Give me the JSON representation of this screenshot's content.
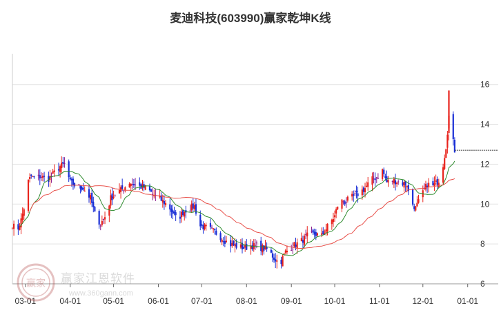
{
  "title": "麦迪科技(603990)赢家乾坤K线",
  "watermark": {
    "name": "赢家江恩软件",
    "url": "www.360gann.com",
    "logo": "赢家"
  },
  "colors": {
    "up": "#e8231c",
    "down": "#1a2fd6",
    "neutral": "#8b1a8b",
    "ma_short": "#2e8b2e",
    "ma_long": "#e8504a",
    "grid": "#e3e3e3"
  },
  "chart_data": {
    "type": "candlestick",
    "title": "麦迪科技(603990)赢家乾坤K线",
    "y_ticks": [
      6,
      8,
      10,
      12,
      14,
      16
    ],
    "x_ticks": [
      "03-01",
      "04-01",
      "05-01",
      "06-01",
      "07-01",
      "08-01",
      "09-01",
      "10-01",
      "11-01",
      "12-01",
      "01-01"
    ],
    "ylim": [
      6,
      17.2
    ],
    "last_price": 12.7,
    "grid": true,
    "series": [
      {
        "name": "",
        "kind": "moving-average-short"
      },
      {
        "name": "",
        "kind": "moving-average-long"
      }
    ],
    "close_path": [
      [
        "02-20",
        9.0
      ],
      [
        "02-23",
        8.6
      ],
      [
        "02-26",
        9.2
      ],
      [
        "02-28",
        9.8
      ],
      [
        "03-02",
        11.0
      ],
      [
        "03-05",
        11.4
      ],
      [
        "03-07",
        11.3
      ],
      [
        "03-12",
        11.4
      ],
      [
        "03-16",
        11.2
      ],
      [
        "03-20",
        11.5
      ],
      [
        "03-25",
        11.9
      ],
      [
        "03-28",
        12.0
      ],
      [
        "04-01",
        11.1
      ],
      [
        "04-05",
        10.9
      ],
      [
        "04-10",
        10.8
      ],
      [
        "04-15",
        10.3
      ],
      [
        "04-18",
        9.5
      ],
      [
        "04-22",
        9.0
      ],
      [
        "04-26",
        9.5
      ],
      [
        "04-29",
        10.3
      ],
      [
        "05-04",
        10.6
      ],
      [
        "05-08",
        10.8
      ],
      [
        "05-12",
        11.1
      ],
      [
        "05-18",
        10.9
      ],
      [
        "05-24",
        10.8
      ],
      [
        "05-28",
        10.5
      ],
      [
        "06-03",
        10.2
      ],
      [
        "06-08",
        9.9
      ],
      [
        "06-14",
        9.2
      ],
      [
        "06-18",
        9.6
      ],
      [
        "06-22",
        9.8
      ],
      [
        "06-26",
        9.9
      ],
      [
        "06-30",
        8.9
      ],
      [
        "07-05",
        8.8
      ],
      [
        "07-10",
        8.6
      ],
      [
        "07-15",
        8.3
      ],
      [
        "07-20",
        8.0
      ],
      [
        "07-25",
        7.9
      ],
      [
        "07-30",
        7.8
      ],
      [
        "08-04",
        7.9
      ],
      [
        "08-08",
        7.9
      ],
      [
        "08-12",
        7.8
      ],
      [
        "08-16",
        7.7
      ],
      [
        "08-20",
        7.3
      ],
      [
        "08-24",
        7.0
      ],
      [
        "08-28",
        7.6
      ],
      [
        "09-02",
        7.9
      ],
      [
        "09-07",
        8.1
      ],
      [
        "09-12",
        8.4
      ],
      [
        "09-17",
        8.5
      ],
      [
        "09-22",
        8.4
      ],
      [
        "09-27",
        9.0
      ],
      [
        "10-01",
        9.4
      ],
      [
        "10-04",
        10.2
      ],
      [
        "10-08",
        10.1
      ],
      [
        "10-12",
        10.3
      ],
      [
        "10-17",
        10.5
      ],
      [
        "10-22",
        10.8
      ],
      [
        "10-26",
        11.2
      ],
      [
        "10-31",
        11.4
      ],
      [
        "11-03",
        11.7
      ],
      [
        "11-06",
        11.1
      ],
      [
        "11-10",
        11.2
      ],
      [
        "11-15",
        11.1
      ],
      [
        "11-20",
        11.0
      ],
      [
        "11-22",
        10.2
      ],
      [
        "11-26",
        9.8
      ],
      [
        "11-30",
        10.4
      ],
      [
        "12-04",
        11.0
      ],
      [
        "12-08",
        10.9
      ],
      [
        "12-12",
        11.2
      ],
      [
        "12-15",
        12.0
      ],
      [
        "12-17",
        12.9
      ],
      [
        "12-19",
        14.4
      ],
      [
        "12-21",
        13.5
      ],
      [
        "12-23",
        12.7
      ]
    ]
  }
}
